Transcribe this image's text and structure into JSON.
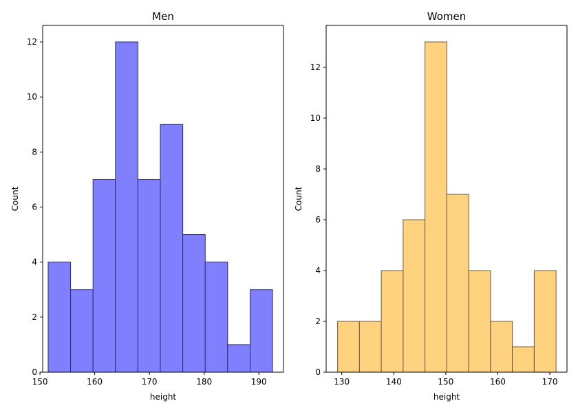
{
  "chart_data": [
    {
      "type": "bar",
      "subtype": "histogram",
      "title": "Men",
      "xlabel": "height",
      "ylabel": "Count",
      "color": "#8080ff",
      "edge_color": "#2b2b6b",
      "bin_edges": [
        151.5,
        155.6,
        159.7,
        163.8,
        167.9,
        172.0,
        176.1,
        180.2,
        184.3,
        188.4,
        192.5
      ],
      "values": [
        4,
        3,
        7,
        12,
        7,
        9,
        5,
        4,
        1,
        3
      ],
      "xlim": [
        150.5,
        194.5
      ],
      "ylim": [
        0,
        12.6
      ],
      "xticks": [
        150,
        160,
        170,
        180,
        190
      ],
      "yticks": [
        0,
        2,
        4,
        6,
        8,
        10,
        12
      ],
      "grid": false
    },
    {
      "type": "bar",
      "subtype": "histogram",
      "title": "Women",
      "xlabel": "height",
      "ylabel": "Count",
      "color": "#ffd27f",
      "edge_color": "#6b5a3a",
      "bin_edges": [
        129.2,
        133.4,
        137.6,
        141.8,
        146.0,
        150.2,
        154.4,
        158.6,
        162.8,
        167.0,
        171.2
      ],
      "values": [
        2,
        2,
        4,
        6,
        13,
        7,
        4,
        2,
        1,
        4
      ],
      "xlim": [
        127.0,
        173.3
      ],
      "ylim": [
        0,
        13.65
      ],
      "xticks": [
        130,
        140,
        150,
        160,
        170
      ],
      "yticks": [
        0,
        2,
        4,
        6,
        8,
        10,
        12
      ],
      "grid": false
    }
  ]
}
